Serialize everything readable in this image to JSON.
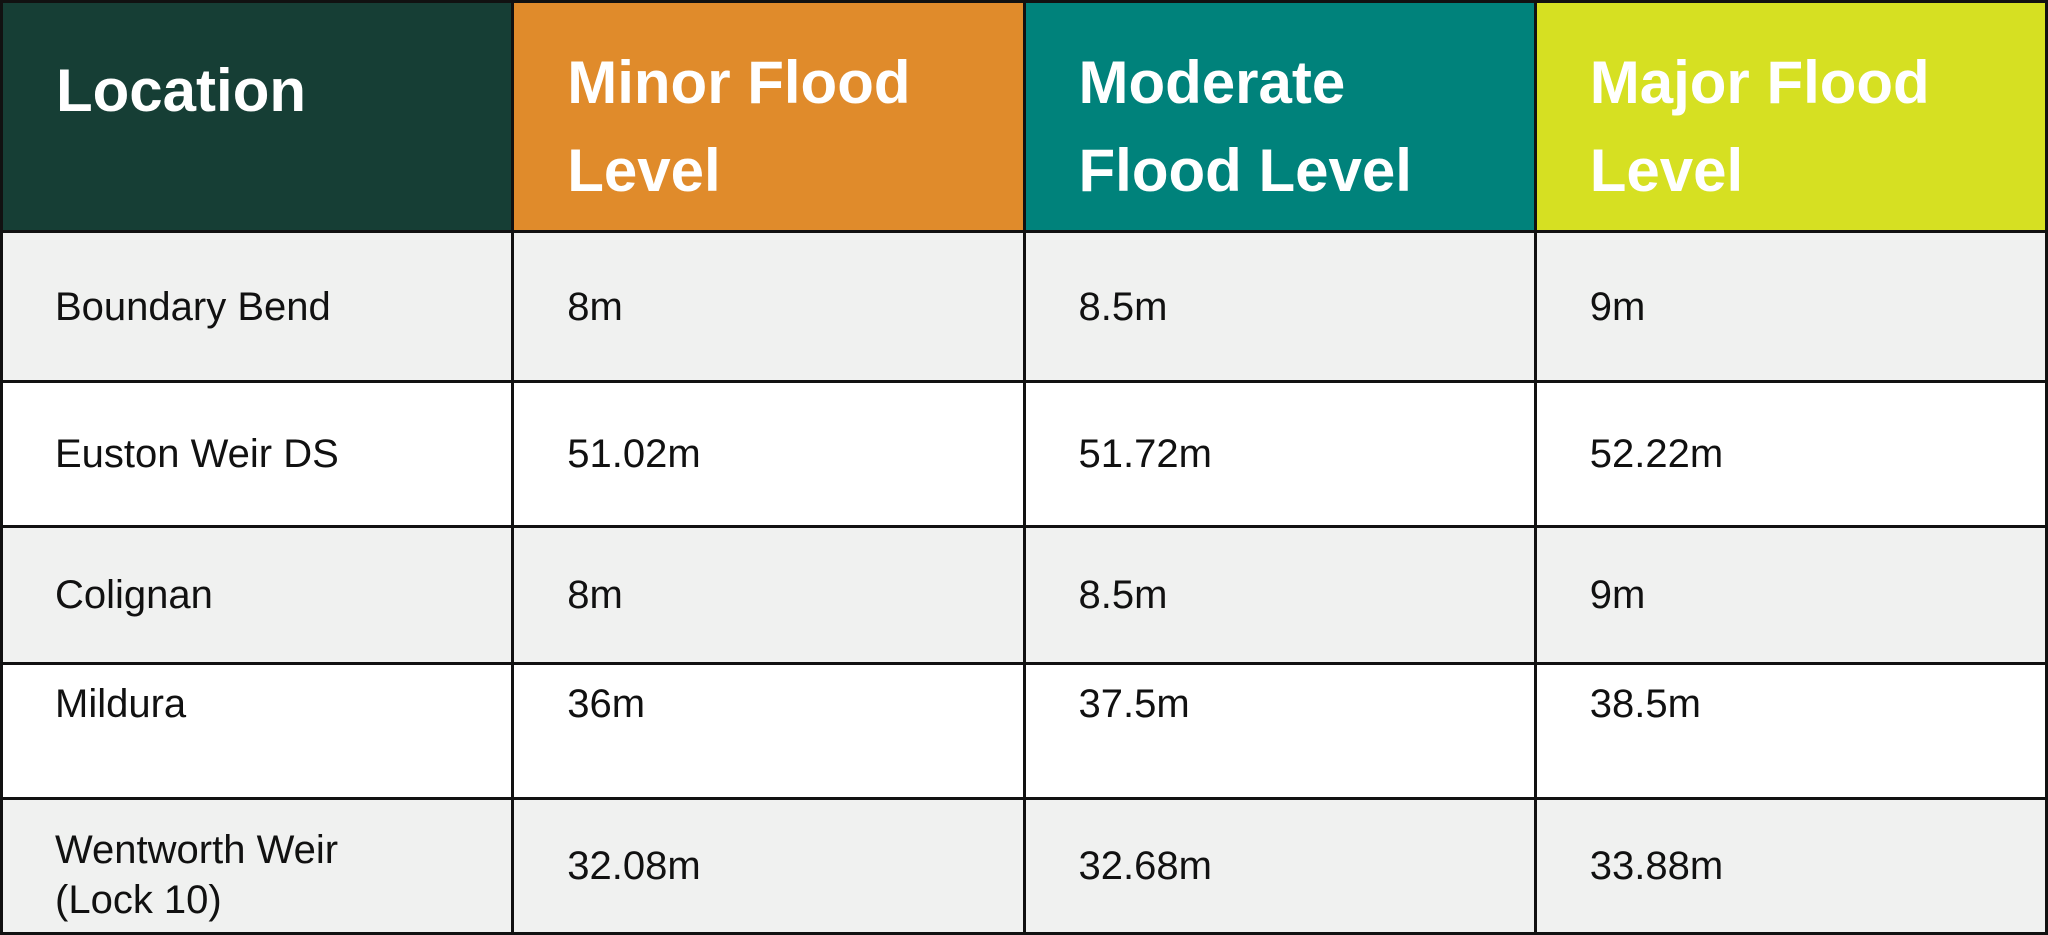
{
  "table": {
    "headers": [
      {
        "label_line1": "Location",
        "label_line2": "",
        "color": "#163e35"
      },
      {
        "label_line1": "Minor Flood",
        "label_line2": "Level",
        "color": "#e08b2b"
      },
      {
        "label_line1": "Moderate",
        "label_line2": "Flood Level",
        "color": "#00827b"
      },
      {
        "label_line1": "Major Flood",
        "label_line2": "Level",
        "color": "#d6e022"
      }
    ],
    "rows": [
      {
        "location": "Boundary Bend",
        "location_line2": "",
        "minor": "8m",
        "moderate": "8.5m",
        "major": "9m"
      },
      {
        "location": "Euston Weir DS",
        "location_line2": "",
        "minor": "51.02m",
        "moderate": "51.72m",
        "major": "52.22m"
      },
      {
        "location": "Colignan",
        "location_line2": "",
        "minor": "8m",
        "moderate": "8.5m",
        "major": "9m"
      },
      {
        "location": "Mildura",
        "location_line2": "",
        "minor": "36m",
        "moderate": "37.5m",
        "major": "38.5m"
      },
      {
        "location": "Wentworth Weir",
        "location_line2": "(Lock 10)",
        "minor": "32.08m",
        "moderate": "32.68m",
        "major": "33.88m"
      }
    ],
    "row_colors": {
      "shaded": "#f0f1f0",
      "plain": "#ffffff",
      "border": "#111111"
    }
  }
}
